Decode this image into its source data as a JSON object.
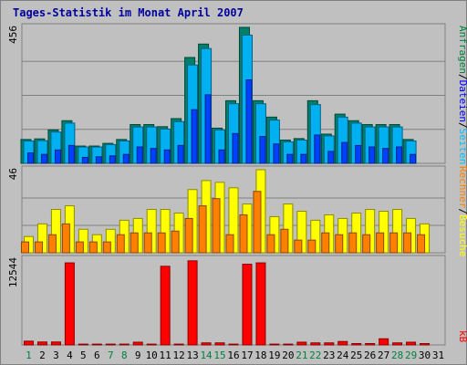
{
  "chart_data": {
    "type": "bar",
    "title": "Tages-Statistik im Monat April 2007",
    "categories": [
      "1",
      "2",
      "3",
      "4",
      "5",
      "6",
      "7",
      "8",
      "9",
      "10",
      "11",
      "12",
      "13",
      "14",
      "15",
      "16",
      "17",
      "18",
      "19",
      "20",
      "21",
      "22",
      "23",
      "24",
      "25",
      "26",
      "27",
      "28",
      "29",
      "30",
      "31"
    ],
    "weekend_days": [
      "1",
      "7",
      "8",
      "14",
      "15",
      "21",
      "22",
      "28",
      "29"
    ],
    "weekend_label_color": "#008040",
    "weekday_label_color": "#000000",
    "panels": [
      {
        "name": "requests",
        "ymax_label": "456",
        "ylim": [
          0,
          456
        ],
        "series": [
          {
            "name": "Anfragen",
            "color": "#00806a",
            "values": [
              80,
              82,
              112,
              143,
              58,
              58,
              67,
              80,
              130,
              130,
              123,
              150,
              355,
              400,
              118,
              210,
              456,
              210,
              155,
              78,
              83,
              210,
              98,
              165,
              143,
              130,
              130,
              130,
              80,
              0,
              0
            ]
          },
          {
            "name": "Dateien",
            "color": "#00b0f0",
            "values": [
              75,
              76,
              105,
              135,
              55,
              55,
              63,
              75,
              122,
              122,
              115,
              140,
              330,
              385,
              112,
              200,
              430,
              200,
              145,
              72,
              78,
              197,
              92,
              155,
              135,
              122,
              122,
              122,
              75,
              0,
              0
            ]
          },
          {
            "name": "Seiten",
            "color": "#0040ff",
            "values": [
              35,
              30,
              45,
              60,
              20,
              22,
              25,
              30,
              55,
              50,
              45,
              60,
              180,
              230,
              45,
              100,
              280,
              90,
              65,
              30,
              30,
              95,
              40,
              70,
              60,
              55,
              50,
              55,
              30,
              0,
              0
            ]
          }
        ],
        "legend": [
          {
            "label": "Anfragen",
            "color": "#008040"
          },
          {
            "label": "/",
            "color": "#000000"
          },
          {
            "label": "Dateien",
            "color": "#0000ff"
          },
          {
            "label": "/",
            "color": "#000000"
          },
          {
            "label": "Seiten",
            "color": "#00c0ff"
          }
        ]
      },
      {
        "name": "visits",
        "ymax_label": "46",
        "ylim": [
          0,
          46
        ],
        "series": [
          {
            "name": "Besuche",
            "color": "#ffff00",
            "values": [
              9,
              16,
              24,
              26,
              13,
              10,
              13,
              18,
              19,
              24,
              24,
              22,
              35,
              40,
              39,
              36,
              27,
              46,
              20,
              27,
              23,
              18,
              21,
              19,
              22,
              24,
              23,
              24,
              19,
              16,
              0
            ]
          },
          {
            "name": "Rechner",
            "color": "#ff8000",
            "values": [
              6,
              6,
              10,
              16,
              6,
              6,
              6,
              10,
              11,
              11,
              11,
              12,
              19,
              26,
              30,
              10,
              21,
              34,
              10,
              13,
              7,
              7,
              11,
              10,
              11,
              10,
              11,
              11,
              11,
              10,
              0
            ]
          }
        ],
        "legend": [
          {
            "label": "Rechner",
            "color": "#ff8000"
          },
          {
            "label": "/",
            "color": "#000000"
          },
          {
            "label": "Besuche",
            "color": "#ffff00"
          }
        ]
      },
      {
        "name": "kbytes",
        "ymax_label": "12544",
        "ylim": [
          0,
          12544
        ],
        "series": [
          {
            "name": "kB",
            "color": "#ff0000",
            "values": [
              550,
              430,
              430,
              12000,
              120,
              120,
              120,
              120,
              400,
              120,
              11500,
              120,
              12300,
              300,
              300,
              120,
              11800,
              12000,
              120,
              120,
              400,
              300,
              300,
              500,
              200,
              200,
              900,
              300,
              400,
              200,
              0
            ]
          }
        ],
        "legend": [
          {
            "label": "kB",
            "color": "#ff0000"
          }
        ]
      }
    ]
  }
}
